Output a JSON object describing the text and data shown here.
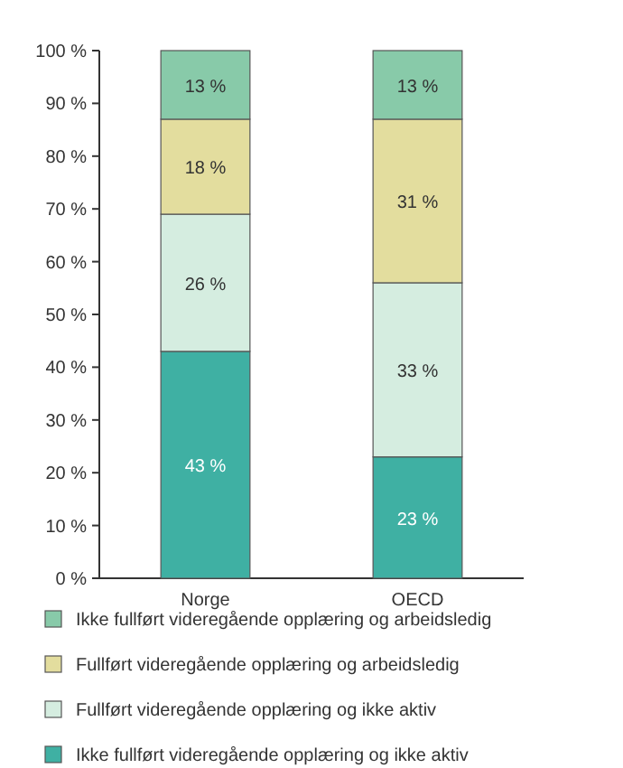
{
  "chart_data": {
    "type": "bar",
    "stacked": true,
    "categories": [
      "Norge",
      "OECD"
    ],
    "series": [
      {
        "name": "Ikke fullført videregående opplæring og ikke aktiv",
        "color": "#3fb0a3",
        "values": [
          43,
          23
        ],
        "value_labels": [
          "43 %",
          "23 %"
        ]
      },
      {
        "name": "Fullført videregående opplæring og ikke aktiv",
        "color": "#d5ede0",
        "values": [
          26,
          33
        ],
        "value_labels": [
          "26 %",
          "33 %"
        ]
      },
      {
        "name": "Fullført videregående opplæring og arbeidsledig",
        "color": "#e3dd9e",
        "values": [
          18,
          31
        ],
        "value_labels": [
          "18 %",
          "31 %"
        ]
      },
      {
        "name": "Ikke fullført videregående opplæring og arbeidsledig",
        "color": "#88caa9",
        "values": [
          13,
          13
        ],
        "value_labels": [
          "13 %",
          "13 %"
        ]
      }
    ],
    "ylim": [
      0,
      100
    ],
    "yticks": [
      {
        "value": 0,
        "label": "0 %"
      },
      {
        "value": 10,
        "label": "10 %"
      },
      {
        "value": 20,
        "label": "20 %"
      },
      {
        "value": 30,
        "label": "30 %"
      },
      {
        "value": 40,
        "label": "40 %"
      },
      {
        "value": 50,
        "label": "50 %"
      },
      {
        "value": 60,
        "label": "60 %"
      },
      {
        "value": 70,
        "label": "70 %"
      },
      {
        "value": 80,
        "label": "80 %"
      },
      {
        "value": 90,
        "label": "90 %"
      },
      {
        "value": 100,
        "label": "100 %"
      }
    ],
    "legend": "bottom"
  }
}
